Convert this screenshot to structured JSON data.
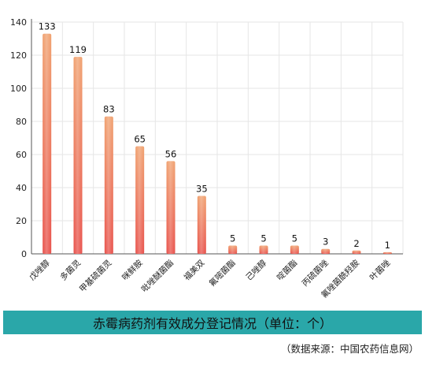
{
  "chart_data": {
    "type": "bar",
    "title": "赤霉病药剂有效成分登记情况（单位：个）",
    "categories": [
      "戊唑醇",
      "多菌灵",
      "甲基硫菌灵",
      "咪鲜胺",
      "吡唑醚菌酯",
      "福美双",
      "氟嘧菌酯",
      "己唑醇",
      "啶菌酯",
      "丙硫菌唑",
      "氟唑菌酰羟胺",
      "叶菌唑"
    ],
    "values": [
      133,
      119,
      83,
      65,
      56,
      35,
      5,
      5,
      5,
      3,
      2,
      1
    ],
    "y_ticks": [
      "0",
      "20",
      "40",
      "60",
      "80",
      "100",
      "120",
      "140"
    ],
    "ylim": [
      0,
      140
    ],
    "xlabel": "",
    "ylabel": "",
    "grid": true,
    "legend": "none",
    "bar_color_top": "#f0a06e",
    "bar_color_bottom": "#e8504a"
  },
  "source_note": "（数据来源：中国农药信息网）",
  "colors": {
    "title_band": "#2aa7a9",
    "grid": "#e6e6e6",
    "axis": "#555555"
  }
}
